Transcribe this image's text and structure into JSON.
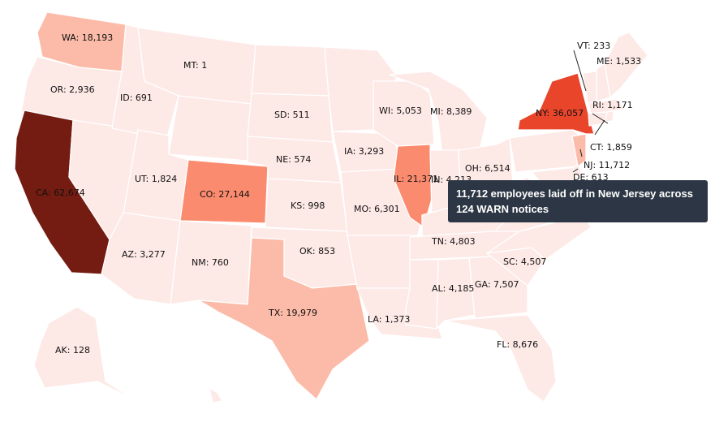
{
  "colors": {
    "scale": [
      "#fde9e6",
      "#fcbba8",
      "#fb8b6e",
      "#e8452b",
      "#741c12"
    ],
    "tooltip_bg": "#2d3644"
  },
  "states": {
    "WA": {
      "label": "WA: 18,193",
      "value": 18193
    },
    "OR": {
      "label": "OR: 2,936",
      "value": 2936
    },
    "CA": {
      "label": "CA: 62,674",
      "value": 62674
    },
    "ID": {
      "label": "ID: 691",
      "value": 691
    },
    "MT": {
      "label": "MT: 1",
      "value": 1
    },
    "NV": {
      "label": "",
      "value": null
    },
    "UT": {
      "label": "UT: 1,824",
      "value": 1824
    },
    "AZ": {
      "label": "AZ: 3,277",
      "value": 3277
    },
    "CO": {
      "label": "CO: 27,144",
      "value": 27144
    },
    "NM": {
      "label": "NM: 760",
      "value": 760
    },
    "WY": {
      "label": "",
      "value": null
    },
    "ND": {
      "label": "",
      "value": null
    },
    "SD": {
      "label": "SD: 511",
      "value": 511
    },
    "NE": {
      "label": "NE: 574",
      "value": 574
    },
    "KS": {
      "label": "KS: 998",
      "value": 998
    },
    "OK": {
      "label": "OK: 853",
      "value": 853
    },
    "TX": {
      "label": "TX: 19,979",
      "value": 19979
    },
    "MN": {
      "label": "",
      "value": null
    },
    "IA": {
      "label": "IA: 3,293",
      "value": 3293
    },
    "MO": {
      "label": "MO: 6,301",
      "value": 6301
    },
    "AR": {
      "label": "",
      "value": null
    },
    "LA": {
      "label": "LA: 1,373",
      "value": 1373
    },
    "WI": {
      "label": "WI: 5,053",
      "value": 5053
    },
    "IL": {
      "label": "IL: 21,371",
      "value": 21371
    },
    "MI": {
      "label": "MI: 8,389",
      "value": 8389
    },
    "IN": {
      "label": "IN: 4,213",
      "value": 4213
    },
    "OH": {
      "label": "OH: 6,514",
      "value": 6514
    },
    "KY": {
      "label": "",
      "value": null
    },
    "TN": {
      "label": "TN: 4,803",
      "value": 4803
    },
    "MS": {
      "label": "",
      "value": null
    },
    "AL": {
      "label": "AL: 4,185",
      "value": 4185
    },
    "GA": {
      "label": "GA: 7,507",
      "value": 7507
    },
    "FL": {
      "label": "FL: 8,676",
      "value": 8676
    },
    "SC": {
      "label": "SC: 4,507",
      "value": 4507
    },
    "NC": {
      "label": "",
      "value": null
    },
    "VA": {
      "label": "",
      "value": null
    },
    "WV": {
      "label": "",
      "value": null
    },
    "PA": {
      "label": "",
      "value": null
    },
    "NY": {
      "label": "NY: 36,057",
      "value": 36057
    },
    "VT": {
      "label": "VT: 233",
      "value": 233
    },
    "NH": {
      "label": "",
      "value": null
    },
    "ME": {
      "label": "ME: 1,533",
      "value": 1533
    },
    "MA": {
      "label": "",
      "value": null
    },
    "RI": {
      "label": "RI: 1,171",
      "value": 1171
    },
    "CT": {
      "label": "CT: 1,859",
      "value": 1859
    },
    "NJ": {
      "label": "NJ: 11,712",
      "value": 11712
    },
    "DE": {
      "label": "DE: 613",
      "value": 613
    },
    "MD": {
      "label": "",
      "value": null
    },
    "AK": {
      "label": "AK: 128",
      "value": 128
    },
    "HI": {
      "label": "",
      "value": null
    }
  },
  "tooltip": {
    "text": "11,712 employees laid off in New Jersey across 124 WARN notices"
  }
}
